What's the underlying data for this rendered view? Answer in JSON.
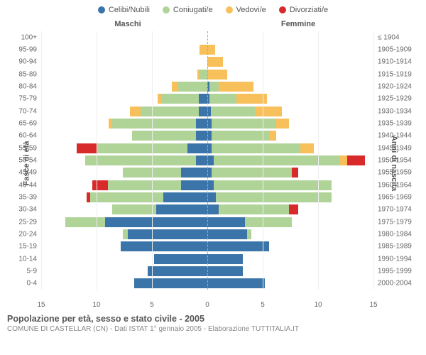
{
  "legend": [
    {
      "label": "Celibi/Nubili",
      "color": "#3b74a8"
    },
    {
      "label": "Coniugati/e",
      "color": "#b0d398"
    },
    {
      "label": "Vedovi/e",
      "color": "#f8c05a"
    },
    {
      "label": "Divorziati/e",
      "color": "#d82a2a"
    }
  ],
  "titles": {
    "male": "Maschi",
    "female": "Femmine"
  },
  "ylabels": {
    "left": "Fasce di età",
    "right": "Anni di nascita"
  },
  "xaxis": {
    "max": 15,
    "ticks": [
      15,
      10,
      5,
      0,
      5,
      10,
      15
    ]
  },
  "colors": {
    "celibi": "#3b74a8",
    "coniugati": "#b0d398",
    "vedovi": "#f8c05a",
    "divorziati": "#d82a2a",
    "grid": "#eeeeee",
    "centerline": "#aaaaaa",
    "background": "#ffffff"
  },
  "chart_type": "population_pyramid_stacked",
  "rows": [
    {
      "age": "100+",
      "year": "≤ 1904",
      "m": {
        "c": 0,
        "k": 0,
        "v": 0,
        "d": 0
      },
      "f": {
        "c": 0,
        "k": 0,
        "v": 0,
        "d": 0
      }
    },
    {
      "age": "95-99",
      "year": "1905-1909",
      "m": {
        "c": 0,
        "k": 0,
        "v": 0.7,
        "d": 0
      },
      "f": {
        "c": 0,
        "k": 0,
        "v": 0.7,
        "d": 0
      }
    },
    {
      "age": "90-94",
      "year": "1910-1914",
      "m": {
        "c": 0,
        "k": 0,
        "v": 0,
        "d": 0
      },
      "f": {
        "c": 0,
        "k": 0,
        "v": 1.4,
        "d": 0
      }
    },
    {
      "age": "85-89",
      "year": "1915-1919",
      "m": {
        "c": 0,
        "k": 0.7,
        "v": 0.2,
        "d": 0
      },
      "f": {
        "c": 0,
        "k": 0,
        "v": 1.8,
        "d": 0
      }
    },
    {
      "age": "80-84",
      "year": "1920-1924",
      "m": {
        "c": 0,
        "k": 2.6,
        "v": 0.6,
        "d": 0
      },
      "f": {
        "c": 0.2,
        "k": 0.8,
        "v": 3.2,
        "d": 0
      }
    },
    {
      "age": "75-79",
      "year": "1925-1929",
      "m": {
        "c": 0.8,
        "k": 3.4,
        "v": 0.3,
        "d": 0
      },
      "f": {
        "c": 0.2,
        "k": 2.4,
        "v": 2.8,
        "d": 0
      }
    },
    {
      "age": "70-74",
      "year": "1930-1934",
      "m": {
        "c": 0.8,
        "k": 5.2,
        "v": 1.0,
        "d": 0
      },
      "f": {
        "c": 0.3,
        "k": 4.0,
        "v": 2.4,
        "d": 0
      }
    },
    {
      "age": "65-69",
      "year": "1935-1939",
      "m": {
        "c": 1.0,
        "k": 7.6,
        "v": 0.3,
        "d": 0
      },
      "f": {
        "c": 0.4,
        "k": 5.8,
        "v": 1.2,
        "d": 0
      }
    },
    {
      "age": "60-64",
      "year": "1940-1944",
      "m": {
        "c": 1.0,
        "k": 5.8,
        "v": 0,
        "d": 0
      },
      "f": {
        "c": 0.4,
        "k": 5.2,
        "v": 0.6,
        "d": 0
      }
    },
    {
      "age": "55-59",
      "year": "1945-1949",
      "m": {
        "c": 1.8,
        "k": 8.2,
        "v": 0,
        "d": 1.8
      },
      "f": {
        "c": 0.4,
        "k": 8.0,
        "v": 1.2,
        "d": 0
      }
    },
    {
      "age": "50-54",
      "year": "1950-1954",
      "m": {
        "c": 1.0,
        "k": 10.0,
        "v": 0,
        "d": 0
      },
      "f": {
        "c": 0.6,
        "k": 11.4,
        "v": 0.6,
        "d": 1.6
      }
    },
    {
      "age": "45-49",
      "year": "1955-1959",
      "m": {
        "c": 2.4,
        "k": 5.2,
        "v": 0,
        "d": 0
      },
      "f": {
        "c": 0.4,
        "k": 7.2,
        "v": 0,
        "d": 0.6
      }
    },
    {
      "age": "40-44",
      "year": "1960-1964",
      "m": {
        "c": 2.4,
        "k": 6.6,
        "v": 0,
        "d": 1.4
      },
      "f": {
        "c": 0.6,
        "k": 10.6,
        "v": 0,
        "d": 0
      }
    },
    {
      "age": "35-39",
      "year": "1965-1969",
      "m": {
        "c": 4.0,
        "k": 6.6,
        "v": 0,
        "d": 0.3
      },
      "f": {
        "c": 0.8,
        "k": 10.4,
        "v": 0,
        "d": 0
      }
    },
    {
      "age": "30-34",
      "year": "1970-1974",
      "m": {
        "c": 4.6,
        "k": 4.0,
        "v": 0,
        "d": 0
      },
      "f": {
        "c": 1.0,
        "k": 6.4,
        "v": 0,
        "d": 0.8
      }
    },
    {
      "age": "25-29",
      "year": "1975-1979",
      "m": {
        "c": 9.2,
        "k": 3.6,
        "v": 0,
        "d": 0
      },
      "f": {
        "c": 3.4,
        "k": 4.2,
        "v": 0,
        "d": 0
      }
    },
    {
      "age": "20-24",
      "year": "1980-1984",
      "m": {
        "c": 7.2,
        "k": 0.4,
        "v": 0,
        "d": 0
      },
      "f": {
        "c": 3.6,
        "k": 0.4,
        "v": 0,
        "d": 0
      }
    },
    {
      "age": "15-19",
      "year": "1985-1989",
      "m": {
        "c": 7.8,
        "k": 0,
        "v": 0,
        "d": 0
      },
      "f": {
        "c": 5.6,
        "k": 0,
        "v": 0,
        "d": 0
      }
    },
    {
      "age": "10-14",
      "year": "1990-1994",
      "m": {
        "c": 4.8,
        "k": 0,
        "v": 0,
        "d": 0
      },
      "f": {
        "c": 3.2,
        "k": 0,
        "v": 0,
        "d": 0
      }
    },
    {
      "age": "5-9",
      "year": "1995-1999",
      "m": {
        "c": 5.4,
        "k": 0,
        "v": 0,
        "d": 0
      },
      "f": {
        "c": 3.2,
        "k": 0,
        "v": 0,
        "d": 0
      }
    },
    {
      "age": "0-4",
      "year": "2000-2004",
      "m": {
        "c": 6.6,
        "k": 0,
        "v": 0,
        "d": 0
      },
      "f": {
        "c": 5.2,
        "k": 0,
        "v": 0,
        "d": 0
      }
    }
  ],
  "footer": {
    "title": "Popolazione per età, sesso e stato civile - 2005",
    "sub": "COMUNE DI CASTELLAR (CN) - Dati ISTAT 1° gennaio 2005 - Elaborazione TUTTITALIA.IT"
  }
}
